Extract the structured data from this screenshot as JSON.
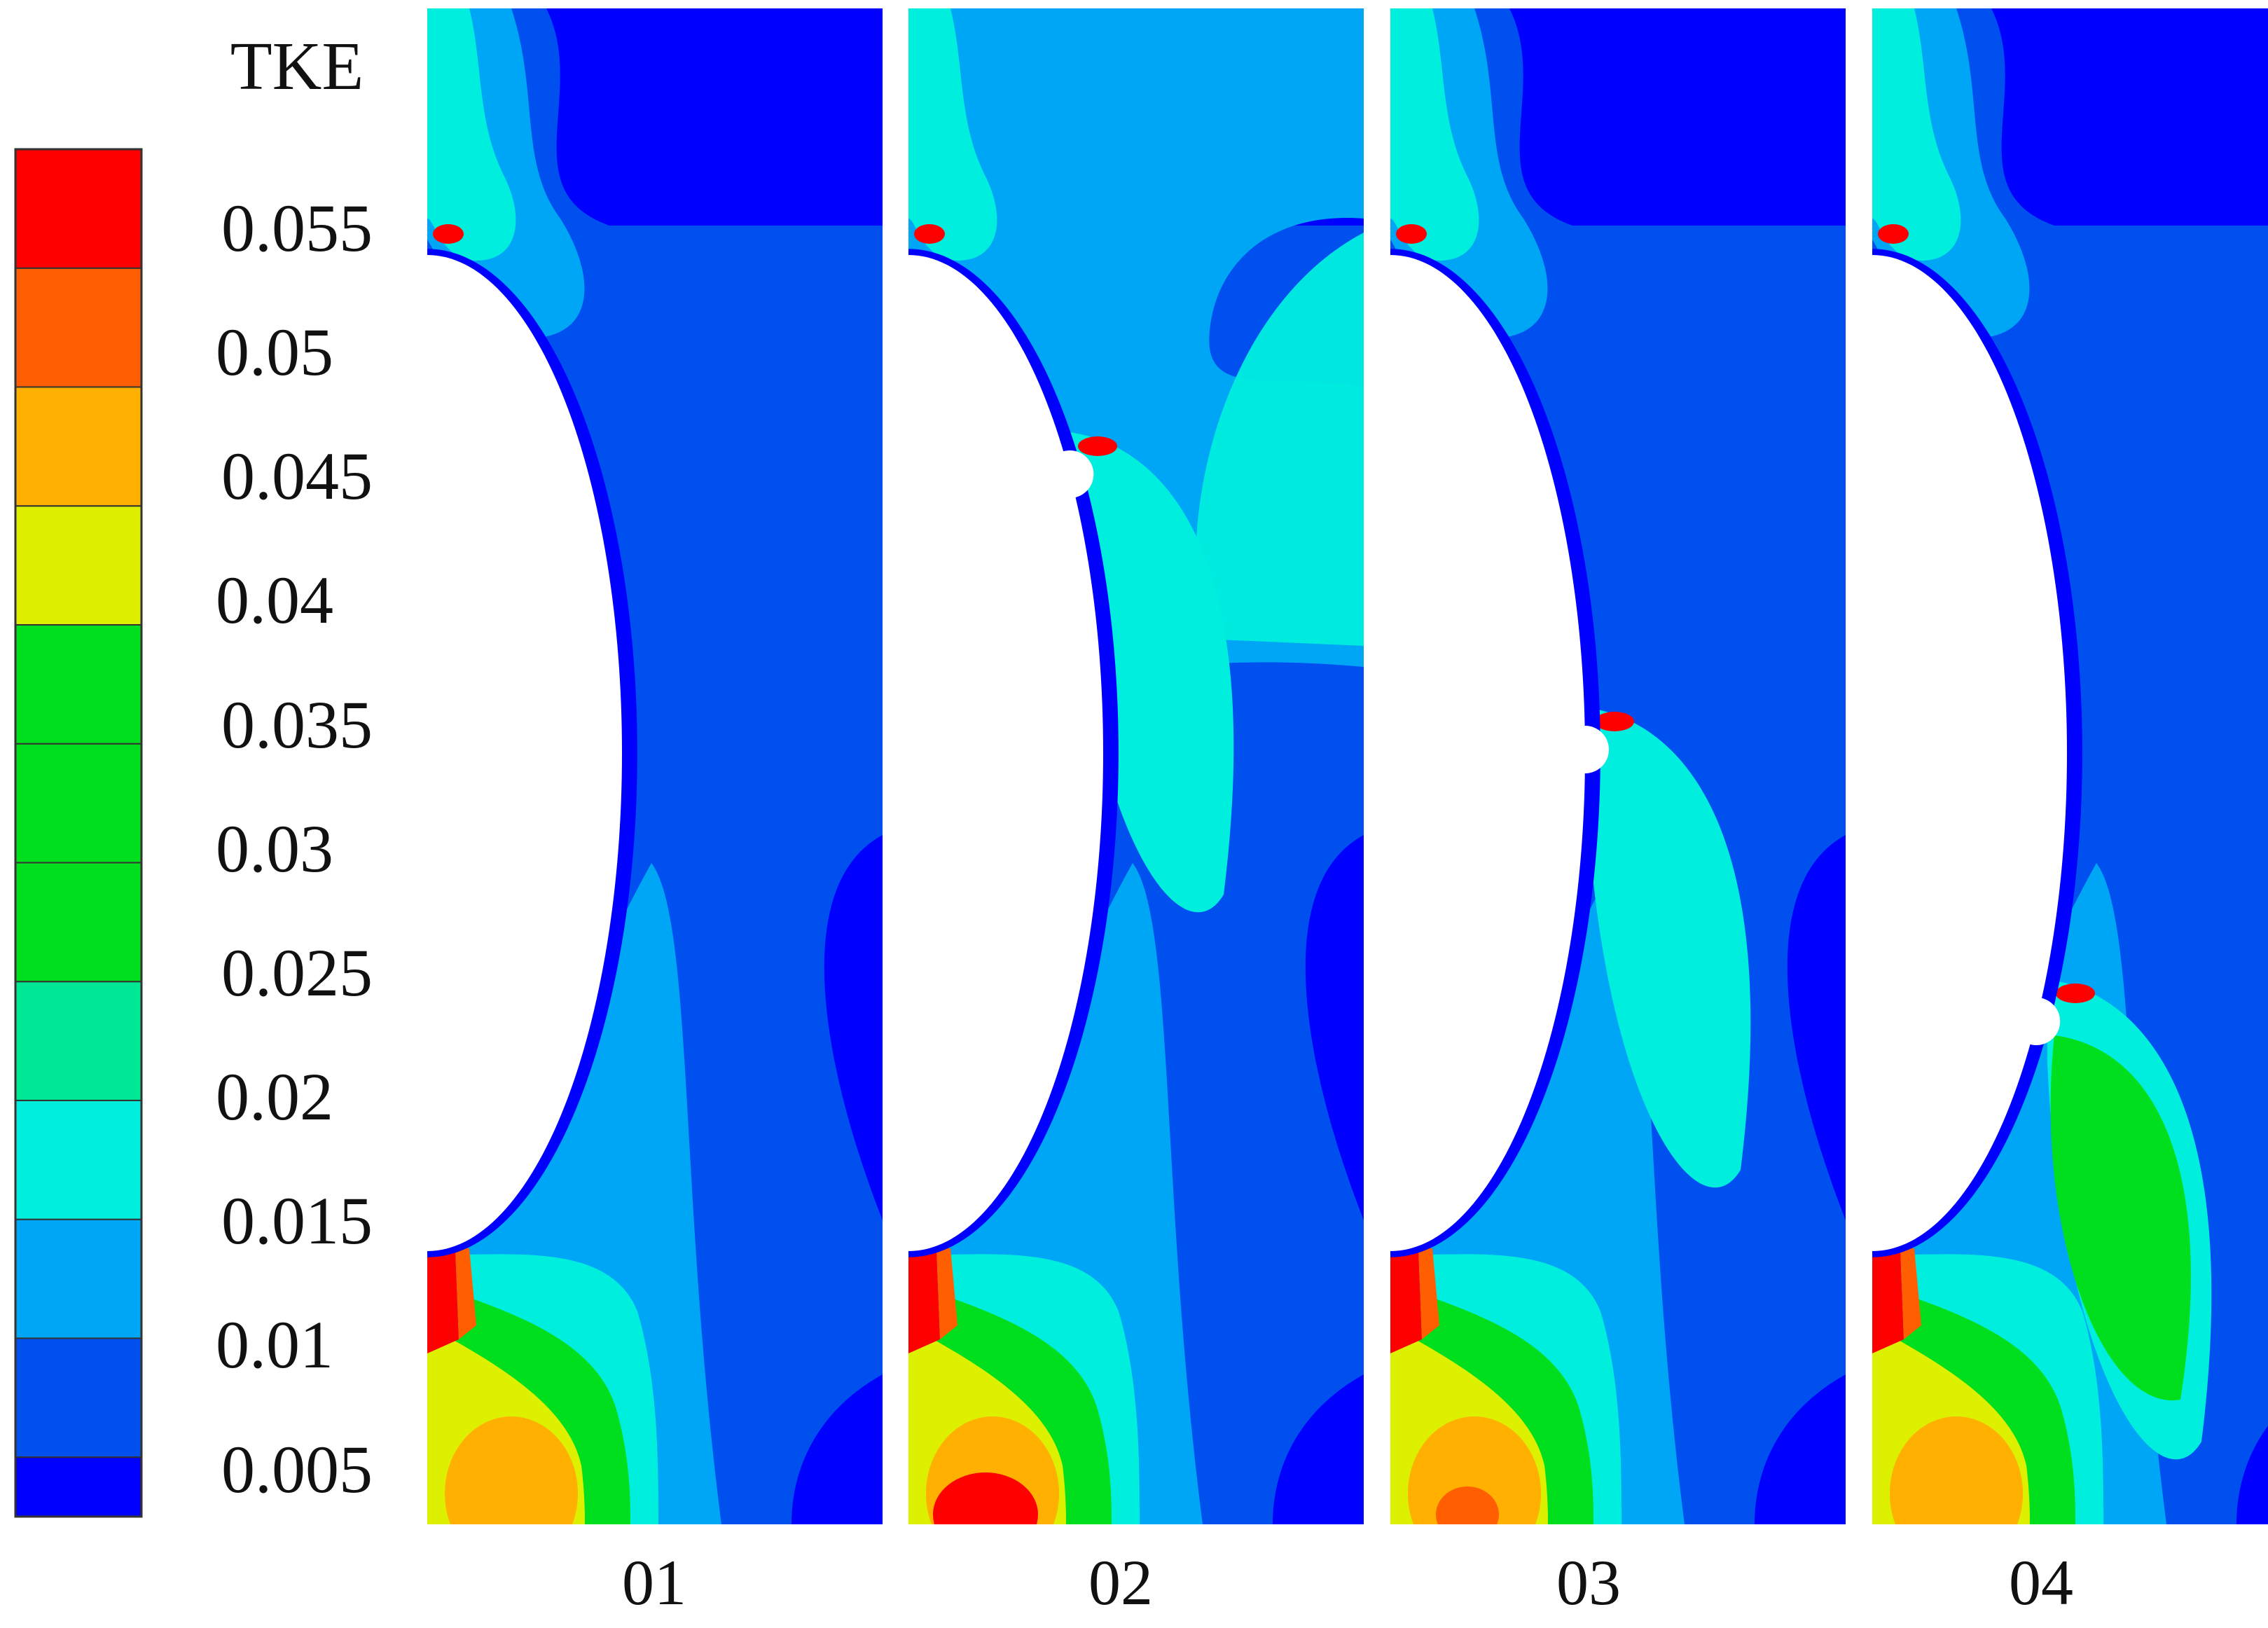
{
  "colorbar": {
    "title": "TKE",
    "tick_labels": [
      "0.055",
      "0.05",
      "0.045",
      "0.04",
      "0.035",
      "0.03",
      "0.025",
      "0.02",
      "0.015",
      "0.01",
      "0.005"
    ],
    "band_colors": [
      "#0000ff",
      "#0050f0",
      "#00a6f6",
      "#00eede",
      "#00e896",
      "#00df1d",
      "#00df1d",
      "#00df1d",
      "#ddf000",
      "#ffb000",
      "#ff5f00",
      "#ff0000"
    ]
  },
  "palette": {
    "lvl0": "#0000ff",
    "lvl1": "#0050f0",
    "lvl2": "#00a6f6",
    "lvl3": "#00eede",
    "lvl4": "#00e896",
    "lvl5": "#00df1d",
    "lvl6": "#ddf000",
    "lvl7": "#ffb000",
    "lvl8": "#ff5f00",
    "lvl9": "#ff0000"
  },
  "panels": [
    {
      "label": "01",
      "groove": "none"
    },
    {
      "label": "02",
      "groove": "upper"
    },
    {
      "label": "03",
      "groove": "middle"
    },
    {
      "label": "04",
      "groove": "lower"
    }
  ]
}
